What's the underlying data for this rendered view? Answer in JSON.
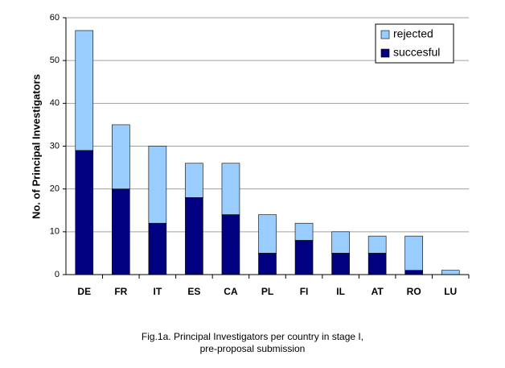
{
  "chart_data": {
    "type": "stacked_bar",
    "y_label": "No. of Principal Investigators",
    "caption": [
      "Fig.1a. Principal Investigators per country in stage I,",
      "pre-proposal submission"
    ],
    "categories": [
      "DE",
      "FR",
      "IT",
      "ES",
      "CA",
      "PL",
      "FI",
      "IL",
      "AT",
      "RO",
      "LU"
    ],
    "series": [
      {
        "name": "succesful",
        "color": "#000080",
        "values": [
          29,
          20,
          12,
          18,
          14,
          5,
          8,
          5,
          5,
          1,
          0
        ]
      },
      {
        "name": "rejected",
        "color": "#99ccff",
        "values": [
          28,
          15,
          18,
          8,
          12,
          9,
          4,
          5,
          4,
          8,
          1
        ]
      }
    ],
    "ylim": [
      0,
      60
    ],
    "yticks": [
      0,
      10,
      20,
      30,
      40,
      50,
      60
    ],
    "grid": true,
    "legend": "top-right"
  }
}
